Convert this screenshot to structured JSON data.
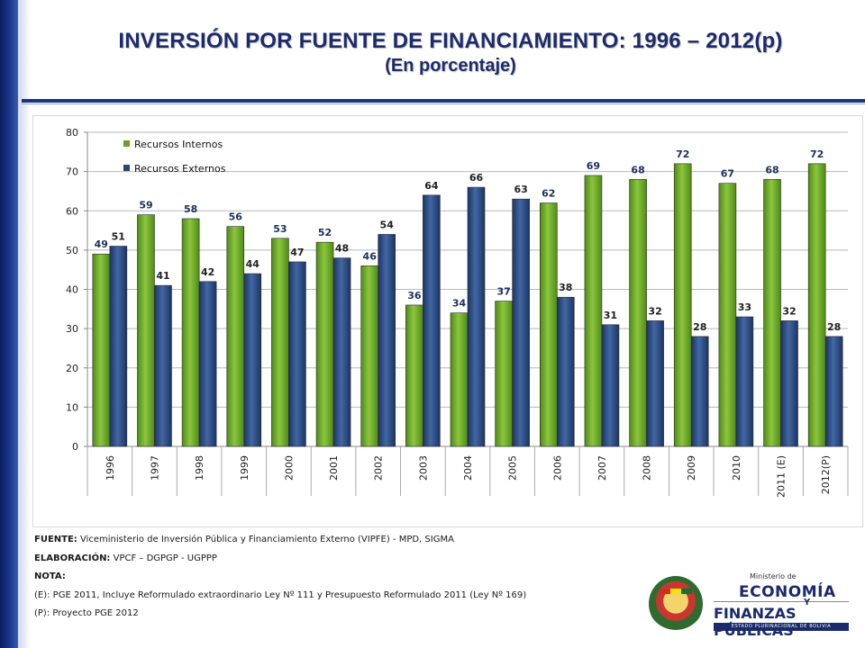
{
  "header": {
    "title": "INVERSIÓN POR FUENTE DE FINANCIAMIENTO: 1996 – 2012(p)",
    "subtitle": "(En porcentaje)"
  },
  "chart_data": {
    "type": "bar",
    "categories": [
      "1996",
      "1997",
      "1998",
      "1999",
      "2000",
      "2001",
      "2002",
      "2003",
      "2004",
      "2005",
      "2006",
      "2007",
      "2008",
      "2009",
      "2010",
      "2011 (E)",
      "2012(P)"
    ],
    "series": [
      {
        "name": "Recursos Internos",
        "color": "#6aa121",
        "values": [
          49,
          59,
          58,
          56,
          53,
          52,
          46,
          36,
          34,
          37,
          62,
          69,
          68,
          72,
          67,
          68,
          72
        ]
      },
      {
        "name": "Recursos Externos",
        "color": "#27477a",
        "values": [
          51,
          41,
          42,
          44,
          47,
          48,
          54,
          64,
          66,
          63,
          38,
          31,
          32,
          28,
          33,
          32,
          28
        ]
      }
    ],
    "ylim": [
      0,
      80
    ],
    "yticks": [
      0,
      10,
      20,
      30,
      40,
      50,
      60,
      70,
      80
    ],
    "grid": true,
    "legend": "top-left"
  },
  "notes": {
    "fuente_label": "FUENTE:",
    "fuente_text": " Viceministerio de Inversión Pública y Financiamiento Externo (VIPFE) - MPD, SIGMA",
    "elaboracion_label": "ELABORACIÓN:",
    "elaboracion_text": " VPCF – DGPGP - UGPPP",
    "nota_label": "NOTA:",
    "nota_e": "(E): PGE 2011, Incluye Reformulado extraordinario Ley Nº 111 y Presupuesto Reformulado 2011 (Ley Nº 169)",
    "nota_p": "(P): Proyecto PGE 2012"
  },
  "logo": {
    "ministerio": "Ministerio de",
    "economia": "ECONOMÍA",
    "y": "Y",
    "finanzas": "FINANZAS PÚBLICAS",
    "estado": "ESTADO PLURINACIONAL DE BOLIVIA"
  }
}
